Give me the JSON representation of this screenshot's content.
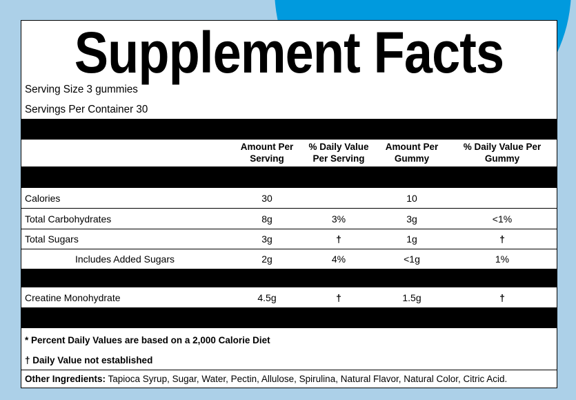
{
  "colors": {
    "background": "#acd0e8",
    "accent_circle": "#009ade",
    "panel": "#ffffff",
    "bars": "#000000"
  },
  "title": "Supplement Facts",
  "serving_size": "Serving Size 3 gummies",
  "servings_per_container": "Servings Per Container 30",
  "columns": [
    "Amount Per Serving",
    "% Daily Value Per Serving",
    "Amount Per Gummy",
    "% Daily Value Per Gummy"
  ],
  "column_lines": [
    [
      "Amount Per",
      "Serving"
    ],
    [
      "% Daily Value",
      "Per Serving"
    ],
    [
      "Amount Per",
      "Gummy"
    ],
    [
      "% Daily Value Per",
      "Gummy"
    ]
  ],
  "rows": [
    {
      "name": "Calories",
      "values": [
        "30",
        "",
        "10",
        ""
      ]
    },
    {
      "name": "Total Carbohydrates",
      "values": [
        "8g",
        "3%",
        "3g",
        "<1%"
      ]
    },
    {
      "name": "Total Sugars",
      "values": [
        "3g",
        "†",
        "1g",
        "†"
      ]
    },
    {
      "name": "Includes Added Sugars",
      "values": [
        "2g",
        "4%",
        "<1g",
        "1%"
      ]
    },
    {
      "name": "Creatine Monohydrate",
      "values": [
        "4.5g",
        "†",
        "1.5g",
        "†"
      ]
    }
  ],
  "footnotes": [
    "* Percent Daily Values are based on a 2,000 Calorie Diet",
    "† Daily Value not established"
  ],
  "other_ingredients": {
    "label": "Other Ingredients:",
    "text": " Tapioca Syrup, Sugar, Water, Pectin, Allulose, Spirulina, Natural Flavor, Natural Color, Citric Acid."
  }
}
